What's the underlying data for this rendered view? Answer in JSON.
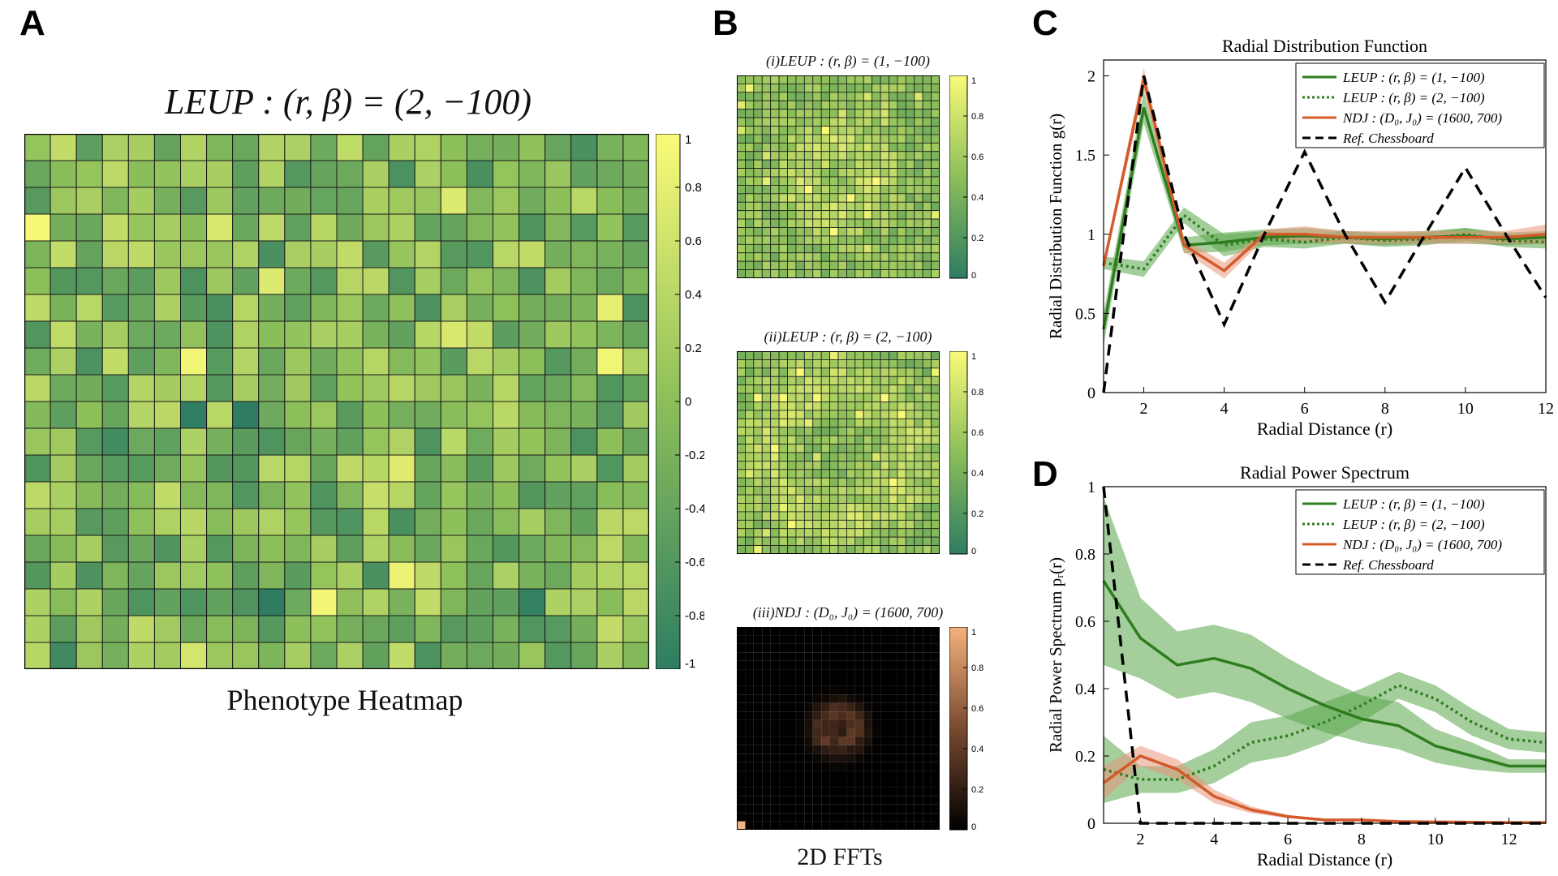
{
  "panels": {
    "a": "A",
    "b": "B",
    "c": "C",
    "d": "D"
  },
  "colors": {
    "leup_green": "#2e7d1e",
    "leup_band": "#5aa54a",
    "ndj_orange": "#d45a2a",
    "ndj_band": "#e8957a",
    "ref_black": "#000000",
    "viridis_low": "#2e7d62",
    "viridis_high": "#fafa78",
    "copper_high": "#f4b27c"
  },
  "heatmap": {
    "title": "LEUP :  (r, β) = (2, −100)",
    "caption": "Phenotype Heatmap",
    "colorbar_ticks": [
      "1",
      "0.8",
      "0.6",
      "0.4",
      "0.2",
      "0",
      "-0.2",
      "-0.4",
      "-0.6",
      "-0.8",
      "-1"
    ]
  },
  "fft": {
    "caption": "2D   FFTs",
    "panels": [
      {
        "title": "(i)LEUP : (r, β) = (1, −100)",
        "ticks": [
          "1",
          "0.8",
          "0.6",
          "0.4",
          "0.2",
          "0"
        ]
      },
      {
        "title": "(ii)LEUP : (r, β) = (2, −100)",
        "ticks": [
          "1",
          "0.8",
          "0.6",
          "0.4",
          "0.2",
          "0"
        ]
      },
      {
        "title": "(iii)NDJ : (D₀, J₀) = (1600, 700)",
        "ticks": [
          "1",
          "0.8",
          "0.6",
          "0.4",
          "0.2",
          "0"
        ]
      }
    ]
  },
  "chart_data": [
    {
      "type": "line",
      "title": "Radial Distribution Function",
      "xlabel": "Radial Distance (r)",
      "ylabel": "Radial Distribution Function g(r)",
      "xlim": [
        1,
        12
      ],
      "ylim": [
        0,
        2.1
      ],
      "xticks": [
        "2",
        "4",
        "6",
        "8",
        "10",
        "12"
      ],
      "yticks": [
        "0",
        "0.5",
        "1",
        "1.5",
        "2"
      ],
      "legend_position": "top-right",
      "series": [
        {
          "name": "LEUP : (r, β) = (1, −100)",
          "style": "solid",
          "color": "#2e7d1e",
          "x": [
            1,
            2,
            3,
            4,
            5,
            6,
            7,
            8,
            9,
            10,
            11,
            12
          ],
          "y": [
            0.4,
            1.8,
            0.93,
            0.95,
            0.98,
            0.99,
            0.98,
            0.97,
            0.98,
            0.99,
            0.97,
            0.98
          ],
          "band": [
            0.1,
            0.1,
            0.05,
            0.06,
            0.05,
            0.05,
            0.04,
            0.04,
            0.04,
            0.05,
            0.04,
            0.04
          ]
        },
        {
          "name": "LEUP : (r, β) = (2, −100)",
          "style": "dotted",
          "color": "#2e7d1e",
          "x": [
            1,
            2,
            3,
            4,
            5,
            6,
            7,
            8,
            9,
            10,
            11,
            12
          ],
          "y": [
            0.82,
            0.78,
            1.12,
            0.93,
            0.97,
            0.95,
            0.98,
            0.96,
            0.97,
            1.0,
            0.96,
            0.95
          ],
          "band": [
            0.04,
            0.05,
            0.05,
            0.07,
            0.05,
            0.04,
            0.04,
            0.04,
            0.04,
            0.04,
            0.04,
            0.04
          ]
        },
        {
          "name": "NDJ : (D₀, J₀) = (1600, 700)",
          "style": "solid",
          "color": "#d45a2a",
          "x": [
            1,
            2,
            3,
            4,
            5,
            6,
            7,
            8,
            9,
            10,
            11,
            12
          ],
          "y": [
            0.8,
            1.98,
            0.93,
            0.77,
            1.0,
            1.0,
            0.98,
            0.98,
            0.98,
            0.98,
            0.98,
            1.0
          ],
          "band": [
            0.03,
            0.07,
            0.04,
            0.05,
            0.03,
            0.05,
            0.04,
            0.04,
            0.04,
            0.04,
            0.04,
            0.06
          ]
        },
        {
          "name": "Ref. Chessboard",
          "style": "dashed",
          "color": "#000000",
          "x": [
            1,
            2,
            3,
            4,
            5,
            6,
            7,
            8,
            9,
            10,
            11,
            12
          ],
          "y": [
            0,
            2,
            1,
            0.43,
            1,
            1.52,
            1,
            0.57,
            1,
            1.42,
            1,
            0.6
          ]
        }
      ]
    },
    {
      "type": "line",
      "title": "Radial Power Spectrum",
      "xlabel": "Radial Distance (r)",
      "ylabel": "Radial Power Spectrum pᵣ(r)",
      "xlim": [
        1,
        13
      ],
      "ylim": [
        0,
        1
      ],
      "xticks": [
        "2",
        "4",
        "6",
        "8",
        "10",
        "12"
      ],
      "yticks": [
        "0",
        "0.2",
        "0.4",
        "0.6",
        "0.8",
        "1"
      ],
      "legend_position": "top-right",
      "series": [
        {
          "name": "LEUP : (r, β) = (1, −100)",
          "style": "solid",
          "color": "#2e7d1e",
          "x": [
            1,
            2,
            3,
            4,
            5,
            6,
            7,
            8,
            9,
            10,
            11,
            12,
            13
          ],
          "y": [
            0.72,
            0.55,
            0.47,
            0.49,
            0.46,
            0.4,
            0.35,
            0.31,
            0.29,
            0.23,
            0.2,
            0.17,
            0.17
          ],
          "band": [
            0.25,
            0.12,
            0.1,
            0.1,
            0.1,
            0.09,
            0.08,
            0.07,
            0.07,
            0.05,
            0.04,
            0.02,
            0.02
          ]
        },
        {
          "name": "LEUP : (r, β) = (2, −100)",
          "style": "dotted",
          "color": "#2e7d1e",
          "x": [
            1,
            2,
            3,
            4,
            5,
            6,
            7,
            8,
            9,
            10,
            11,
            12,
            13
          ],
          "y": [
            0.16,
            0.13,
            0.13,
            0.17,
            0.24,
            0.26,
            0.3,
            0.35,
            0.41,
            0.37,
            0.3,
            0.25,
            0.24
          ],
          "band": [
            0.1,
            0.04,
            0.04,
            0.05,
            0.06,
            0.06,
            0.06,
            0.05,
            0.04,
            0.04,
            0.04,
            0.03,
            0.03
          ]
        },
        {
          "name": "NDJ : (D₀, J₀) = (1600, 700)",
          "style": "solid",
          "color": "#d45a2a",
          "x": [
            1,
            2,
            3,
            4,
            5,
            6,
            7,
            8,
            9,
            10,
            11,
            12,
            13
          ],
          "y": [
            0.12,
            0.2,
            0.16,
            0.08,
            0.04,
            0.02,
            0.01,
            0.01,
            0.005,
            0.004,
            0.003,
            0.002,
            0.002
          ],
          "band": [
            0.05,
            0.03,
            0.03,
            0.02,
            0.01,
            0.005,
            0.003,
            0.002,
            0.002,
            0.002,
            0.001,
            0.001,
            0.001
          ]
        },
        {
          "name": "Ref. Chessboard",
          "style": "dashed",
          "color": "#000000",
          "x": [
            1,
            2,
            3,
            4,
            5,
            6,
            7,
            8,
            9,
            10,
            11,
            12,
            13
          ],
          "y": [
            1,
            0,
            0,
            0,
            0,
            0,
            0,
            0,
            0,
            0,
            0,
            0,
            0
          ]
        }
      ]
    }
  ]
}
